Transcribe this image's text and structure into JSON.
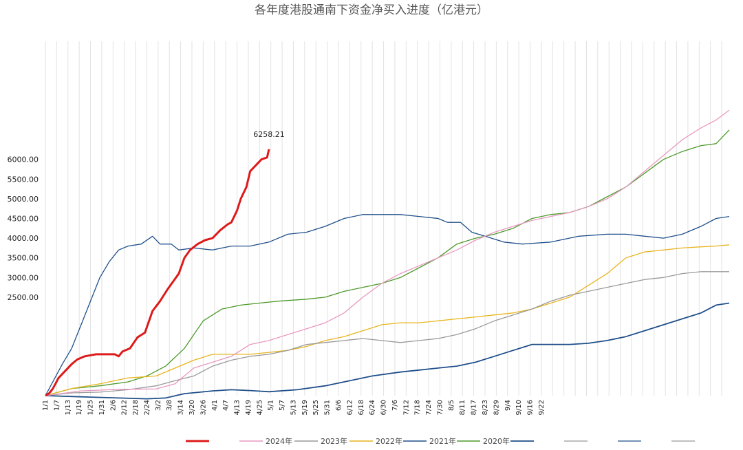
{
  "chart_data": {
    "type": "line",
    "title": "各年度港股通南下资金净买入进度（亿港元）",
    "xlabel": "",
    "ylabel": "",
    "ylim": [
      0,
      9000
    ],
    "y_ticks": [
      0,
      500,
      1000,
      1500,
      2000,
      2500,
      3000,
      3500,
      4000,
      4500,
      5000,
      5500,
      6000,
      6500,
      7000,
      7500,
      8000
    ],
    "y_tick_labels": [
      "",
      "",
      "",
      "",
      "",
      "2500.00",
      "3000.00",
      "3500.00",
      "4000.00",
      "4500.00",
      "5000.00",
      "5500.00",
      "6000.00",
      "",
      "",
      "",
      ""
    ],
    "x_ticks": [
      "1/1",
      "1/7",
      "1/13",
      "1/19",
      "1/25",
      "1/31",
      "2/6",
      "2/12",
      "2/18",
      "2/24",
      "3/2",
      "3/8",
      "3/14",
      "3/20",
      "3/26",
      "4/1",
      "4/7",
      "4/13",
      "4/19",
      "4/25",
      "5/1",
      "5/7",
      "5/13",
      "5/19",
      "5/25",
      "5/31",
      "6/6",
      "6/12",
      "6/18",
      "6/24",
      "6/30",
      "7/6",
      "7/12",
      "7/18",
      "7/24",
      "7/30",
      "8/5",
      "8/11",
      "8/17",
      "8/23",
      "8/29",
      "9/4",
      "9/10",
      "9/16",
      "9/22",
      "9/28",
      "10/4",
      "10/10",
      "10/16",
      "10/22",
      "10/28",
      "11/3",
      "11/9",
      "11/15",
      "11/21",
      "11/27",
      "12/3",
      "12/9",
      "12/15",
      "12/21",
      "12/27"
    ],
    "x_tick_labels": [
      "1/1",
      "1/7",
      "1/13",
      "1/19",
      "1/25",
      "1/31",
      "2/6",
      "2/12",
      "2/18",
      "2/24",
      "3/2",
      "3/8",
      "3/14",
      "3/20",
      "3/26",
      "4/1",
      "4/7",
      "4/13",
      "4/19",
      "4/25",
      "5/1",
      "5/7",
      "5/13",
      "5/19",
      "5/25",
      "5/31",
      "6/6",
      "6/12",
      "6/18",
      "6/24",
      "6/30",
      "7/6",
      "7/12",
      "7/18",
      "7/24",
      "7/30",
      "8/5",
      "8/11",
      "8/17",
      "8/23",
      "8/29",
      "9/4",
      "9/10",
      "9/16",
      "9/22",
      "",
      "",
      "",
      "",
      "",
      "",
      "",
      "",
      "",
      "",
      "",
      "",
      "",
      "",
      "",
      ""
    ],
    "x_last_day": 365,
    "grid": "vertical",
    "legend_position": "bottom",
    "annotation": {
      "text": "6258.21",
      "series": 0
    },
    "series": [
      {
        "name": "",
        "color": "#dd1a1a",
        "width": 3,
        "points": [
          [
            1,
            0
          ],
          [
            3,
            60
          ],
          [
            5,
            180
          ],
          [
            8,
            450
          ],
          [
            12,
            650
          ],
          [
            15,
            800
          ],
          [
            18,
            920
          ],
          [
            22,
            1000
          ],
          [
            28,
            1050
          ],
          [
            34,
            1050
          ],
          [
            38,
            1050
          ],
          [
            40,
            1000
          ],
          [
            42,
            1120
          ],
          [
            46,
            1200
          ],
          [
            50,
            1480
          ],
          [
            54,
            1600
          ],
          [
            58,
            2150
          ],
          [
            62,
            2400
          ],
          [
            66,
            2700
          ],
          [
            69,
            2900
          ],
          [
            72,
            3100
          ],
          [
            75,
            3500
          ],
          [
            78,
            3700
          ],
          [
            82,
            3850
          ],
          [
            86,
            3950
          ],
          [
            90,
            4000
          ],
          [
            94,
            4200
          ],
          [
            98,
            4350
          ],
          [
            100,
            4400
          ],
          [
            103,
            4700
          ],
          [
            105,
            5000
          ],
          [
            108,
            5300
          ],
          [
            110,
            5700
          ],
          [
            113,
            5850
          ],
          [
            116,
            6000
          ],
          [
            119,
            6050
          ],
          [
            120,
            6258.21
          ]
        ]
      },
      {
        "name": "2024年",
        "color": "#e898c0",
        "width": 1.3,
        "points": [
          [
            1,
            0
          ],
          [
            20,
            120
          ],
          [
            40,
            160
          ],
          [
            60,
            170
          ],
          [
            70,
            300
          ],
          [
            80,
            700
          ],
          [
            90,
            850
          ],
          [
            100,
            1000
          ],
          [
            110,
            1300
          ],
          [
            120,
            1400
          ],
          [
            130,
            1550
          ],
          [
            140,
            1700
          ],
          [
            150,
            1850
          ],
          [
            160,
            2100
          ],
          [
            170,
            2500
          ],
          [
            180,
            2850
          ],
          [
            190,
            3100
          ],
          [
            200,
            3300
          ],
          [
            210,
            3500
          ],
          [
            220,
            3700
          ],
          [
            230,
            3950
          ],
          [
            240,
            4150
          ],
          [
            250,
            4300
          ],
          [
            260,
            4450
          ],
          [
            270,
            4550
          ],
          [
            280,
            4650
          ],
          [
            290,
            4800
          ],
          [
            300,
            5000
          ],
          [
            310,
            5300
          ],
          [
            320,
            5700
          ],
          [
            330,
            6100
          ],
          [
            340,
            6500
          ],
          [
            350,
            6800
          ],
          [
            358,
            7000
          ],
          [
            365,
            7250
          ]
        ]
      },
      {
        "name": "2023年",
        "color": "#999999",
        "width": 1.3,
        "points": [
          [
            1,
            0
          ],
          [
            15,
            70
          ],
          [
            30,
            90
          ],
          [
            45,
            150
          ],
          [
            60,
            250
          ],
          [
            70,
            380
          ],
          [
            80,
            500
          ],
          [
            90,
            750
          ],
          [
            100,
            900
          ],
          [
            110,
            1000
          ],
          [
            120,
            1050
          ],
          [
            130,
            1150
          ],
          [
            140,
            1300
          ],
          [
            150,
            1350
          ],
          [
            160,
            1400
          ],
          [
            170,
            1450
          ],
          [
            180,
            1400
          ],
          [
            190,
            1350
          ],
          [
            200,
            1400
          ],
          [
            210,
            1450
          ],
          [
            220,
            1550
          ],
          [
            230,
            1700
          ],
          [
            240,
            1900
          ],
          [
            250,
            2050
          ],
          [
            260,
            2200
          ],
          [
            270,
            2400
          ],
          [
            280,
            2550
          ],
          [
            290,
            2650
          ],
          [
            300,
            2750
          ],
          [
            310,
            2850
          ],
          [
            320,
            2950
          ],
          [
            330,
            3000
          ],
          [
            340,
            3100
          ],
          [
            350,
            3150
          ],
          [
            358,
            3150
          ],
          [
            365,
            3150
          ]
        ]
      },
      {
        "name": "2022年",
        "color": "#e8b41e",
        "width": 1.3,
        "points": [
          [
            1,
            0
          ],
          [
            15,
            180
          ],
          [
            30,
            300
          ],
          [
            45,
            450
          ],
          [
            60,
            500
          ],
          [
            70,
            700
          ],
          [
            80,
            900
          ],
          [
            90,
            1050
          ],
          [
            100,
            1050
          ],
          [
            110,
            1050
          ],
          [
            120,
            1100
          ],
          [
            130,
            1150
          ],
          [
            140,
            1250
          ],
          [
            150,
            1400
          ],
          [
            160,
            1500
          ],
          [
            170,
            1650
          ],
          [
            180,
            1800
          ],
          [
            190,
            1850
          ],
          [
            200,
            1850
          ],
          [
            210,
            1900
          ],
          [
            220,
            1950
          ],
          [
            230,
            2000
          ],
          [
            240,
            2050
          ],
          [
            250,
            2100
          ],
          [
            260,
            2200
          ],
          [
            270,
            2350
          ],
          [
            280,
            2500
          ],
          [
            290,
            2800
          ],
          [
            300,
            3100
          ],
          [
            310,
            3500
          ],
          [
            320,
            3650
          ],
          [
            330,
            3700
          ],
          [
            340,
            3750
          ],
          [
            350,
            3780
          ],
          [
            358,
            3800
          ],
          [
            365,
            3830
          ]
        ]
      },
      {
        "name": "2021年",
        "color": "#1f4f8a",
        "width": 1.3,
        "points": [
          [
            1,
            0
          ],
          [
            10,
            800
          ],
          [
            15,
            1200
          ],
          [
            20,
            1800
          ],
          [
            25,
            2400
          ],
          [
            30,
            3000
          ],
          [
            35,
            3400
          ],
          [
            40,
            3700
          ],
          [
            45,
            3800
          ],
          [
            52,
            3850
          ],
          [
            58,
            4050
          ],
          [
            62,
            3850
          ],
          [
            68,
            3850
          ],
          [
            72,
            3700
          ],
          [
            80,
            3750
          ],
          [
            90,
            3700
          ],
          [
            100,
            3800
          ],
          [
            110,
            3800
          ],
          [
            120,
            3900
          ],
          [
            130,
            4100
          ],
          [
            140,
            4150
          ],
          [
            150,
            4300
          ],
          [
            160,
            4500
          ],
          [
            170,
            4600
          ],
          [
            180,
            4600
          ],
          [
            190,
            4600
          ],
          [
            200,
            4550
          ],
          [
            210,
            4500
          ],
          [
            215,
            4400
          ],
          [
            222,
            4400
          ],
          [
            228,
            4150
          ],
          [
            235,
            4050
          ],
          [
            245,
            3900
          ],
          [
            255,
            3850
          ],
          [
            270,
            3900
          ],
          [
            285,
            4050
          ],
          [
            300,
            4100
          ],
          [
            310,
            4100
          ],
          [
            320,
            4050
          ],
          [
            330,
            4000
          ],
          [
            340,
            4100
          ],
          [
            350,
            4300
          ],
          [
            358,
            4500
          ],
          [
            365,
            4550
          ]
        ]
      },
      {
        "name": "2020年",
        "color": "#4c9a2a",
        "width": 1.3,
        "points": [
          [
            1,
            0
          ],
          [
            15,
            180
          ],
          [
            30,
            250
          ],
          [
            45,
            350
          ],
          [
            55,
            500
          ],
          [
            65,
            750
          ],
          [
            75,
            1200
          ],
          [
            85,
            1900
          ],
          [
            95,
            2200
          ],
          [
            105,
            2300
          ],
          [
            115,
            2350
          ],
          [
            125,
            2400
          ],
          [
            140,
            2450
          ],
          [
            150,
            2500
          ],
          [
            160,
            2650
          ],
          [
            170,
            2750
          ],
          [
            180,
            2850
          ],
          [
            190,
            3000
          ],
          [
            200,
            3250
          ],
          [
            210,
            3500
          ],
          [
            220,
            3850
          ],
          [
            230,
            4000
          ],
          [
            240,
            4100
          ],
          [
            250,
            4250
          ],
          [
            260,
            4500
          ],
          [
            270,
            4600
          ],
          [
            280,
            4650
          ],
          [
            290,
            4800
          ],
          [
            300,
            5050
          ],
          [
            310,
            5300
          ],
          [
            320,
            5650
          ],
          [
            330,
            6000
          ],
          [
            340,
            6200
          ],
          [
            350,
            6350
          ],
          [
            358,
            6400
          ],
          [
            365,
            6750
          ]
        ]
      },
      {
        "name": "",
        "color": "#1f4f8a",
        "width": 1.8,
        "points": [
          [
            1,
            0
          ],
          [
            20,
            -30
          ],
          [
            40,
            -60
          ],
          [
            55,
            -80
          ],
          [
            65,
            -60
          ],
          [
            75,
            50
          ],
          [
            90,
            120
          ],
          [
            100,
            150
          ],
          [
            110,
            130
          ],
          [
            120,
            100
          ],
          [
            135,
            150
          ],
          [
            150,
            250
          ],
          [
            160,
            350
          ],
          [
            175,
            500
          ],
          [
            190,
            600
          ],
          [
            200,
            650
          ],
          [
            210,
            700
          ],
          [
            220,
            750
          ],
          [
            230,
            850
          ],
          [
            240,
            1000
          ],
          [
            250,
            1150
          ],
          [
            260,
            1300
          ],
          [
            270,
            1300
          ],
          [
            280,
            1300
          ],
          [
            290,
            1330
          ],
          [
            300,
            1400
          ],
          [
            310,
            1500
          ],
          [
            320,
            1650
          ],
          [
            330,
            1800
          ],
          [
            340,
            1950
          ],
          [
            350,
            2100
          ],
          [
            358,
            2300
          ],
          [
            365,
            2350
          ]
        ]
      }
    ],
    "legend": [
      {
        "name": "",
        "color": "#dd1a1a",
        "width": 3
      },
      {
        "name": "2024年",
        "color": "#e898c0",
        "width": 1.5
      },
      {
        "name": "2023年",
        "color": "#999999",
        "width": 1.5
      },
      {
        "name": "2022年",
        "color": "#e8b41e",
        "width": 1.5
      },
      {
        "name": "2021年",
        "color": "#1f4f8a",
        "width": 1.5
      },
      {
        "name": "2020年",
        "color": "#4c9a2a",
        "width": 1.5
      },
      {
        "name": "",
        "color": "#1f4f8a",
        "width": 1.8
      },
      {
        "name": "",
        "color": "#999999",
        "width": 1.2
      },
      {
        "name": "",
        "color": "#1f4f8a",
        "width": 1.2
      },
      {
        "name": "",
        "color": "#999999",
        "width": 1.2
      }
    ]
  }
}
